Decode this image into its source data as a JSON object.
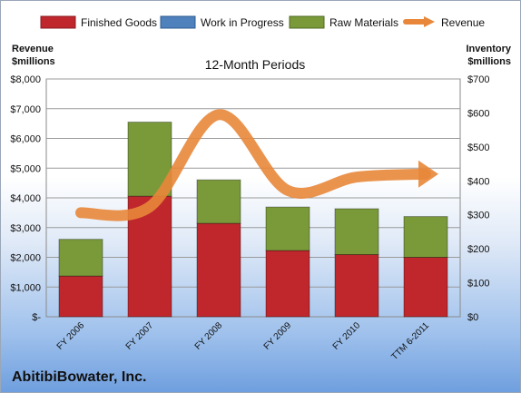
{
  "chart_data": {
    "type": "bar",
    "title": "12-Month Periods",
    "footer": "AbitibiBowater, Inc.",
    "categories": [
      "FY 2006",
      "FY 2007",
      "FY 2008",
      "FY 2009",
      "FY 2010",
      "TTM 6-2011"
    ],
    "left_axis": {
      "label_line1": "Revenue",
      "label_line2": "$millions",
      "ylim": [
        0,
        8000
      ],
      "ticks": [
        "$-",
        "$1,000",
        "$2,000",
        "$3,000",
        "$4,000",
        "$5,000",
        "$6,000",
        "$7,000",
        "$8,000"
      ]
    },
    "right_axis": {
      "label_line1": "Inventory",
      "label_line2": "$millions",
      "ylim": [
        0,
        700
      ],
      "ticks": [
        "$0",
        "$100",
        "$200",
        "$300",
        "$400",
        "$500",
        "$600",
        "$700"
      ]
    },
    "series": [
      {
        "name": "Finished Goods",
        "type": "bar",
        "axis": "right",
        "color": "#c0272d",
        "values": [
          120,
          355,
          275,
          195,
          183,
          175
        ]
      },
      {
        "name": "Work in Progress",
        "type": "bar",
        "axis": "right",
        "color": "#4f81bd",
        "values": [
          0,
          0,
          0,
          0,
          0,
          0
        ]
      },
      {
        "name": "Raw Materials",
        "type": "bar",
        "axis": "right",
        "color": "#7a9a3a",
        "values": [
          108,
          218,
          128,
          128,
          135,
          120
        ]
      },
      {
        "name": "Revenue",
        "type": "line",
        "axis": "left",
        "color": "#e8873a",
        "values": [
          3500,
          3700,
          6800,
          4250,
          4700,
          4800
        ]
      }
    ],
    "grid": true,
    "legend": "top"
  }
}
